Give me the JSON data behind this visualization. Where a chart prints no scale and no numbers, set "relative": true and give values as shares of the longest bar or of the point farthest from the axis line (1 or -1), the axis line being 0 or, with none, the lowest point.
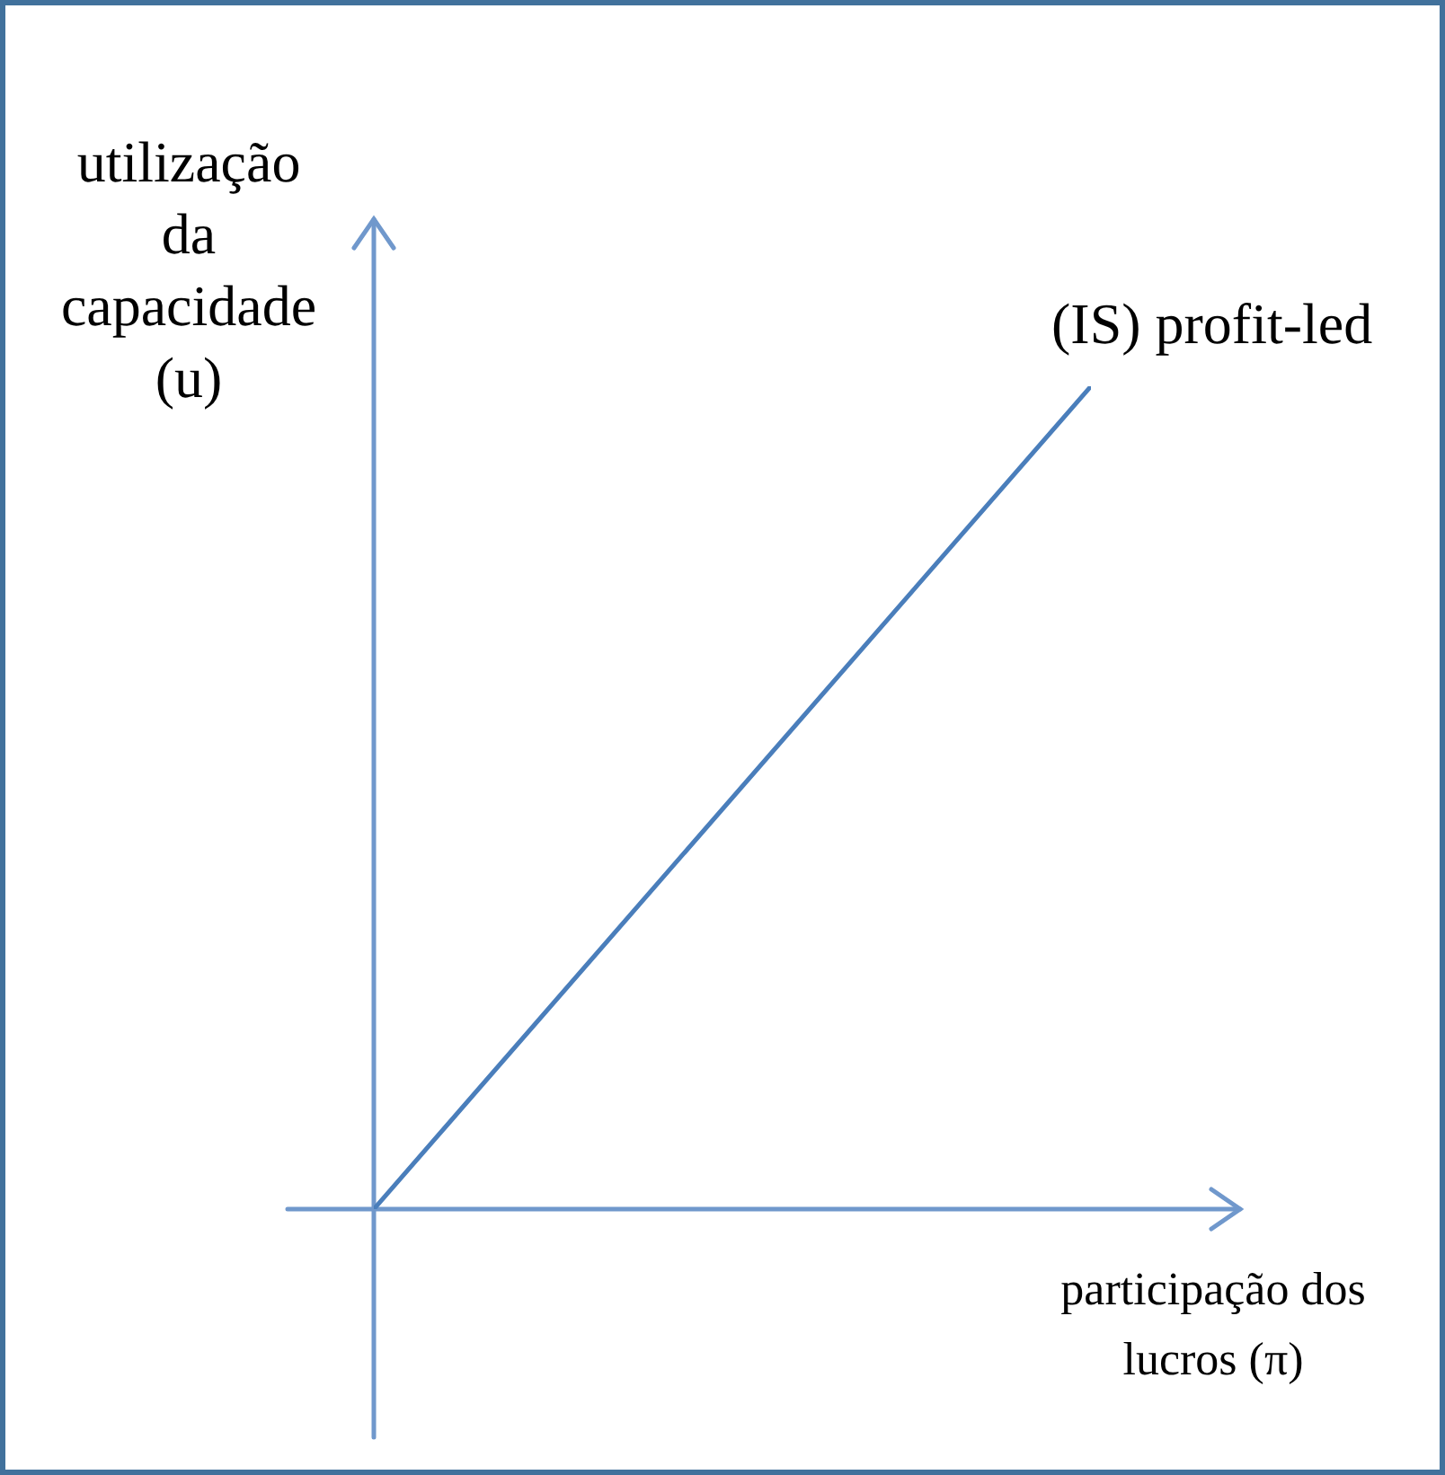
{
  "chart_data": {
    "type": "line",
    "relative": true,
    "ylabel": "utilização da capacidade (u)",
    "xlabel": "participação dos lucros (π)",
    "categories": [
      null,
      null
    ],
    "series": [
      {
        "name": "(IS) profit-led",
        "color": "#4a7ebb",
        "values": [
          0,
          1
        ]
      }
    ]
  }
}
